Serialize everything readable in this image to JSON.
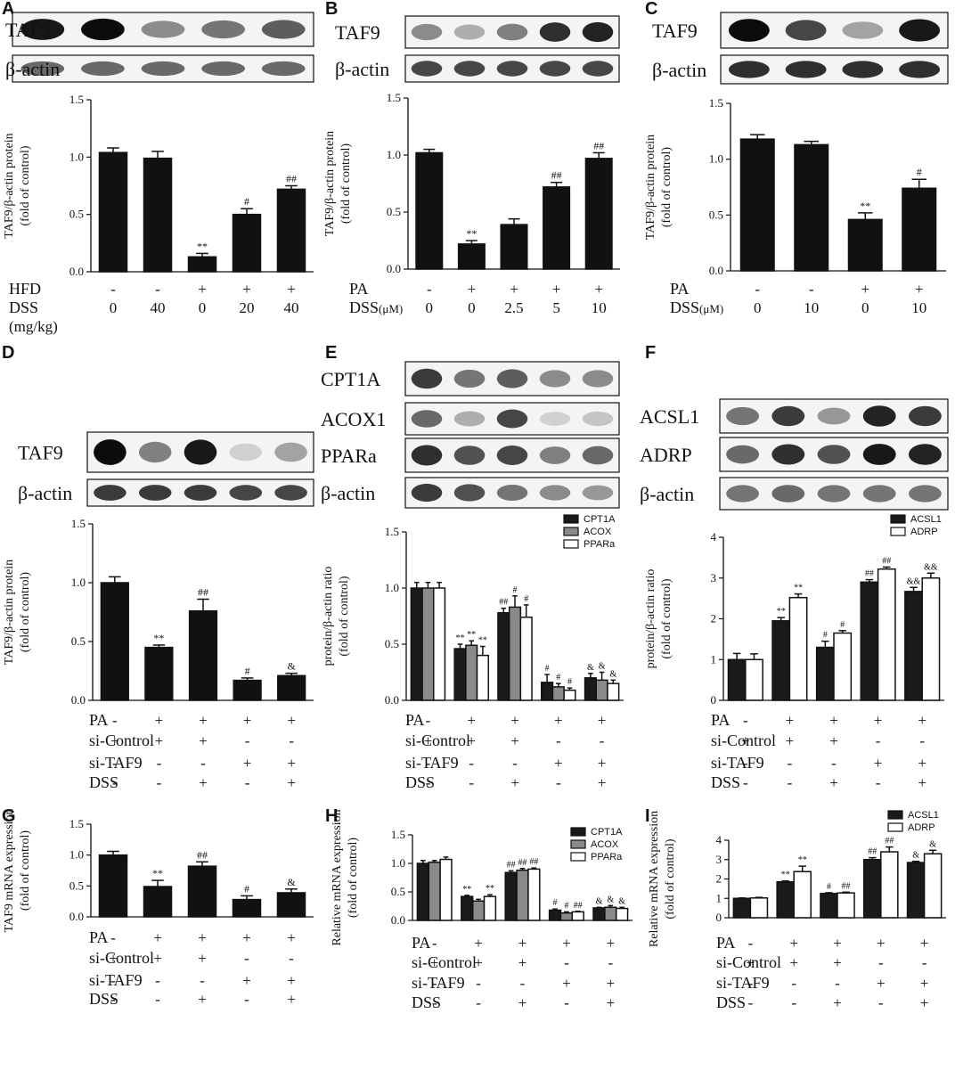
{
  "panels": {
    "A": {
      "letter": "A"
    },
    "B": {
      "letter": "B"
    },
    "C": {
      "letter": "C"
    },
    "D": {
      "letter": "D"
    },
    "E": {
      "letter": "E"
    },
    "F": {
      "letter": "F"
    },
    "G": {
      "letter": "G"
    },
    "H": {
      "letter": "H"
    },
    "I": {
      "letter": "I"
    }
  },
  "blot_intensities": {
    "A": {
      "TAF9": [
        0.95,
        1.0,
        0.45,
        0.55,
        0.65
      ],
      "β-actin": [
        0.6,
        0.6,
        0.6,
        0.6,
        0.6
      ]
    },
    "B": {
      "TAF9": [
        0.45,
        0.3,
        0.5,
        0.85,
        0.9
      ],
      "β-actin": [
        0.75,
        0.75,
        0.75,
        0.75,
        0.75
      ]
    },
    "C": {
      "TAF9": [
        1.0,
        0.75,
        0.35,
        0.95
      ],
      "β-actin": [
        0.85,
        0.85,
        0.85,
        0.85
      ]
    },
    "D": {
      "TAF9": [
        1.0,
        0.5,
        0.95,
        0.15,
        0.35
      ],
      "β-actin": [
        0.8,
        0.8,
        0.8,
        0.75,
        0.75
      ]
    },
    "E": {
      "CPT1A": [
        0.8,
        0.55,
        0.65,
        0.45,
        0.45
      ],
      "ACOX1": [
        0.6,
        0.3,
        0.75,
        0.15,
        0.2
      ],
      "PPARa": [
        0.85,
        0.7,
        0.75,
        0.5,
        0.6
      ],
      "β-actin": [
        0.8,
        0.7,
        0.55,
        0.45,
        0.4
      ]
    },
    "F": {
      "ACSL1": [
        0.55,
        0.8,
        0.4,
        0.9,
        0.8
      ],
      "ADRP": [
        0.6,
        0.85,
        0.7,
        0.95,
        0.9
      ],
      "β-actin": [
        0.55,
        0.6,
        0.55,
        0.55,
        0.55
      ]
    }
  },
  "chart_data": [
    {
      "panel": "A",
      "type": "bar",
      "blot_labels": [
        "TAF9",
        "β-actin"
      ],
      "ylabel": [
        "TAF9/β-actin protein",
        "(fold of control)"
      ],
      "yticks": [
        "0.0",
        "0.5",
        "1.0",
        "1.5"
      ],
      "ylim": [
        0,
        1.5
      ],
      "series": [
        {
          "values": [
            1.04,
            0.99,
            0.13,
            0.5,
            0.72
          ],
          "errors": [
            0.04,
            0.06,
            0.03,
            0.05,
            0.03
          ],
          "color": "#111111",
          "annotations": [
            "",
            "",
            "**",
            "#",
            "##"
          ]
        }
      ],
      "conditions": [
        {
          "label": "HFD",
          "values": [
            "-",
            "-",
            "+",
            "+",
            "+"
          ]
        },
        {
          "label": "DSS",
          "values": [
            "0",
            "40",
            "0",
            "20",
            "40"
          ]
        },
        {
          "label": "(mg/kg)",
          "values": []
        }
      ]
    },
    {
      "panel": "B",
      "type": "bar",
      "blot_labels": [
        "TAF9",
        "β-actin"
      ],
      "ylabel": [
        "TAF9/β-actin protein",
        "(fold of control)"
      ],
      "yticks": [
        "0.0",
        "0.5",
        "1.0",
        "1.5"
      ],
      "ylim": [
        0,
        1.5
      ],
      "series": [
        {
          "values": [
            1.02,
            0.22,
            0.39,
            0.72,
            0.97
          ],
          "errors": [
            0.03,
            0.03,
            0.05,
            0.04,
            0.05
          ],
          "color": "#111111",
          "annotations": [
            "",
            "**",
            "",
            "##",
            "##"
          ]
        }
      ],
      "conditions": [
        {
          "label": "PA",
          "values": [
            "-",
            "+",
            "+",
            "+",
            "+"
          ]
        },
        {
          "label": "DSS",
          "unit": "(μM)",
          "values": [
            "0",
            "0",
            "2.5",
            "5",
            "10"
          ]
        }
      ]
    },
    {
      "panel": "C",
      "type": "bar",
      "blot_labels": [
        "TAF9",
        "β-actin"
      ],
      "ylabel": [
        "TAF9/β-actin protein",
        "(fold of control)"
      ],
      "yticks": [
        "0.0",
        "0.5",
        "1.0",
        "1.5"
      ],
      "ylim": [
        0,
        1.5
      ],
      "series": [
        {
          "values": [
            1.18,
            1.13,
            0.46,
            0.74
          ],
          "errors": [
            0.04,
            0.03,
            0.06,
            0.08
          ],
          "color": "#111111",
          "annotations": [
            "",
            "",
            "**",
            "#"
          ]
        }
      ],
      "conditions": [
        {
          "label": "PA",
          "values": [
            "-",
            "-",
            "+",
            "+"
          ]
        },
        {
          "label": "DSS",
          "unit": "(μM)",
          "values": [
            "0",
            "10",
            "0",
            "10"
          ]
        }
      ]
    },
    {
      "panel": "D",
      "type": "bar",
      "blot_labels": [
        "TAF9",
        "β-actin"
      ],
      "ylabel": [
        "TAF9/β-actin protein",
        "(fold of control)"
      ],
      "yticks": [
        "0.0",
        "0.5",
        "1.0",
        "1.5"
      ],
      "ylim": [
        0,
        1.5
      ],
      "series": [
        {
          "values": [
            1.0,
            0.45,
            0.76,
            0.17,
            0.21
          ],
          "errors": [
            0.05,
            0.02,
            0.1,
            0.02,
            0.02
          ],
          "color": "#111111",
          "annotations": [
            "",
            "**",
            "##",
            "#",
            "&"
          ]
        }
      ],
      "conditions": [
        {
          "label": "PA",
          "values": [
            "-",
            "+",
            "+",
            "+",
            "+"
          ]
        },
        {
          "label": "si-Control",
          "values": [
            "+",
            "+",
            "+",
            "-",
            "-"
          ]
        },
        {
          "label": "si-TAF9",
          "values": [
            "-",
            "-",
            "-",
            "+",
            "+"
          ]
        },
        {
          "label": "DSS",
          "values": [
            "-",
            "-",
            "+",
            "-",
            "+"
          ]
        }
      ]
    },
    {
      "panel": "E",
      "type": "bar",
      "blot_labels": [
        "CPT1A",
        "ACOX1",
        "PPARa",
        "β-actin"
      ],
      "ylabel": [
        "protein/β-actin ratio",
        "(fold of control)"
      ],
      "yticks": [
        "0.0",
        "0.5",
        "1.0",
        "1.5"
      ],
      "ylim": [
        0,
        1.5
      ],
      "legend": [
        "CPT1A",
        "ACOX",
        "PPARa"
      ],
      "series": [
        {
          "name": "CPT1A",
          "values": [
            1.0,
            0.46,
            0.78,
            0.16,
            0.2
          ],
          "errors": [
            0.05,
            0.04,
            0.04,
            0.07,
            0.04
          ],
          "color": "#1a1a1a",
          "annotations": [
            "",
            "**",
            "##",
            "#",
            "&"
          ]
        },
        {
          "name": "ACOX",
          "values": [
            1.0,
            0.49,
            0.83,
            0.12,
            0.18
          ],
          "errors": [
            0.05,
            0.04,
            0.1,
            0.03,
            0.07
          ],
          "color": "#8a8a8a",
          "annotations": [
            "",
            "**",
            "#",
            "#",
            "&"
          ]
        },
        {
          "name": "PPARa",
          "values": [
            1.0,
            0.4,
            0.74,
            0.09,
            0.15
          ],
          "errors": [
            0.05,
            0.08,
            0.11,
            0.02,
            0.03
          ],
          "color": "#ffffff",
          "annotations": [
            "",
            "**",
            "#",
            "#",
            "&"
          ]
        }
      ],
      "conditions": [
        {
          "label": "PA",
          "values": [
            "-",
            "+",
            "+",
            "+",
            "+"
          ]
        },
        {
          "label": "si-Control",
          "values": [
            "+",
            "+",
            "+",
            "-",
            "-"
          ]
        },
        {
          "label": "si-TAF9",
          "values": [
            "-",
            "-",
            "-",
            "+",
            "+"
          ]
        },
        {
          "label": "DSS",
          "values": [
            "-",
            "-",
            "+",
            "-",
            "+"
          ]
        }
      ]
    },
    {
      "panel": "F",
      "type": "bar",
      "blot_labels": [
        "ACSL1",
        "ADRP",
        "β-actin"
      ],
      "ylabel": [
        "protein/β-actin ratio",
        "(fold of control)"
      ],
      "yticks": [
        "0",
        "1",
        "2",
        "3",
        "4"
      ],
      "ylim": [
        0,
        4
      ],
      "legend": [
        "ACSL1",
        "ADRP"
      ],
      "series": [
        {
          "name": "ACSL1",
          "values": [
            1.0,
            1.95,
            1.3,
            2.9,
            2.67
          ],
          "errors": [
            0.15,
            0.08,
            0.15,
            0.06,
            0.1
          ],
          "color": "#1a1a1a",
          "annotations": [
            "",
            "**",
            "#",
            "##",
            "&&"
          ]
        },
        {
          "name": "ADRP",
          "values": [
            1.0,
            2.52,
            1.65,
            3.22,
            3.0
          ],
          "errors": [
            0.14,
            0.09,
            0.06,
            0.05,
            0.12
          ],
          "color": "#ffffff",
          "annotations": [
            "",
            "**",
            "#",
            "##",
            "&&"
          ]
        }
      ],
      "conditions": [
        {
          "label": "PA",
          "values": [
            "-",
            "+",
            "+",
            "+",
            "+"
          ]
        },
        {
          "label": "si-Control",
          "values": [
            "+",
            "+",
            "+",
            "-",
            "-"
          ]
        },
        {
          "label": "si-TAF9",
          "values": [
            "-",
            "-",
            "-",
            "+",
            "+"
          ]
        },
        {
          "label": "DSS",
          "values": [
            "-",
            "-",
            "+",
            "-",
            "+"
          ]
        }
      ]
    },
    {
      "panel": "G",
      "type": "bar",
      "ylabel": [
        "TAF9 mRNA expression",
        "(fold of control)"
      ],
      "yticks": [
        "0.0",
        "0.5",
        "1.0",
        "1.5"
      ],
      "ylim": [
        0,
        1.5
      ],
      "series": [
        {
          "values": [
            1.0,
            0.49,
            0.82,
            0.28,
            0.39
          ],
          "errors": [
            0.06,
            0.1,
            0.07,
            0.06,
            0.06
          ],
          "color": "#111111",
          "annotations": [
            "",
            "**",
            "##",
            "#",
            "&"
          ]
        }
      ],
      "conditions": [
        {
          "label": "PA",
          "values": [
            "-",
            "+",
            "+",
            "+",
            "+"
          ]
        },
        {
          "label": "si-Control",
          "values": [
            "+",
            "+",
            "+",
            "-",
            "-"
          ]
        },
        {
          "label": "si-TAF9",
          "values": [
            "-",
            "-",
            "-",
            "+",
            "+"
          ]
        },
        {
          "label": "DSS",
          "values": [
            "-",
            "-",
            "+",
            "-",
            "+"
          ]
        }
      ]
    },
    {
      "panel": "H",
      "type": "bar",
      "ylabel": [
        "Relative mRNA expression",
        "(fold of control)"
      ],
      "yticks": [
        "0.0",
        "0.5",
        "1.0",
        "1.5"
      ],
      "ylim": [
        0,
        1.5
      ],
      "legend": [
        "CPT1A",
        "ACOX",
        "PPARa"
      ],
      "series": [
        {
          "name": "CPT1A",
          "values": [
            1.0,
            0.42,
            0.84,
            0.18,
            0.22
          ],
          "errors": [
            0.05,
            0.02,
            0.03,
            0.02,
            0.01
          ],
          "color": "#1a1a1a",
          "annotations": [
            "",
            "**",
            "##",
            "#",
            "&"
          ]
        },
        {
          "name": "ACOX",
          "values": [
            1.02,
            0.34,
            0.88,
            0.13,
            0.23
          ],
          "errors": [
            0.03,
            0.03,
            0.03,
            0.02,
            0.03
          ],
          "color": "#8a8a8a",
          "annotations": [
            "",
            "",
            "##",
            "#",
            "&"
          ]
        },
        {
          "name": "PPARa",
          "values": [
            1.07,
            0.42,
            0.9,
            0.15,
            0.21
          ],
          "errors": [
            0.04,
            0.03,
            0.02,
            0.01,
            0.02
          ],
          "color": "#ffffff",
          "annotations": [
            "",
            "**",
            "##",
            "##",
            "&"
          ]
        }
      ],
      "conditions": [
        {
          "label": "PA",
          "values": [
            "-",
            "+",
            "+",
            "+",
            "+"
          ]
        },
        {
          "label": "si-Control",
          "values": [
            "+",
            "+",
            "+",
            "-",
            "-"
          ]
        },
        {
          "label": "si-TAF9",
          "values": [
            "-",
            "-",
            "-",
            "+",
            "+"
          ]
        },
        {
          "label": "DSS",
          "values": [
            "-",
            "-",
            "+",
            "-",
            "+"
          ]
        }
      ]
    },
    {
      "panel": "I",
      "type": "bar",
      "ylabel": [
        "Relative mRNA expression",
        "(fold of control)"
      ],
      "yticks": [
        "0",
        "1",
        "2",
        "3",
        "4"
      ],
      "ylim": [
        0,
        4
      ],
      "legend": [
        "ACSL1",
        "ADRP"
      ],
      "series": [
        {
          "name": "ACSL1",
          "values": [
            1.0,
            1.85,
            1.25,
            3.0,
            2.85
          ],
          "errors": [
            0.02,
            0.05,
            0.04,
            0.1,
            0.06
          ],
          "color": "#1a1a1a",
          "annotations": [
            "",
            "**",
            "#",
            "##",
            "&"
          ]
        },
        {
          "name": "ADRP",
          "values": [
            1.02,
            2.38,
            1.28,
            3.4,
            3.3
          ],
          "errors": [
            0.03,
            0.28,
            0.04,
            0.25,
            0.18
          ],
          "color": "#ffffff",
          "annotations": [
            "",
            "**",
            "##",
            "##",
            "&"
          ]
        }
      ],
      "conditions": [
        {
          "label": "PA",
          "values": [
            "-",
            "+",
            "+",
            "+",
            "+"
          ]
        },
        {
          "label": "si-Control",
          "values": [
            "+",
            "+",
            "+",
            "-",
            "-"
          ]
        },
        {
          "label": "si-TAF9",
          "values": [
            "-",
            "-",
            "-",
            "+",
            "+"
          ]
        },
        {
          "label": "DSS",
          "values": [
            "-",
            "-",
            "+",
            "-",
            "+"
          ]
        }
      ]
    }
  ]
}
